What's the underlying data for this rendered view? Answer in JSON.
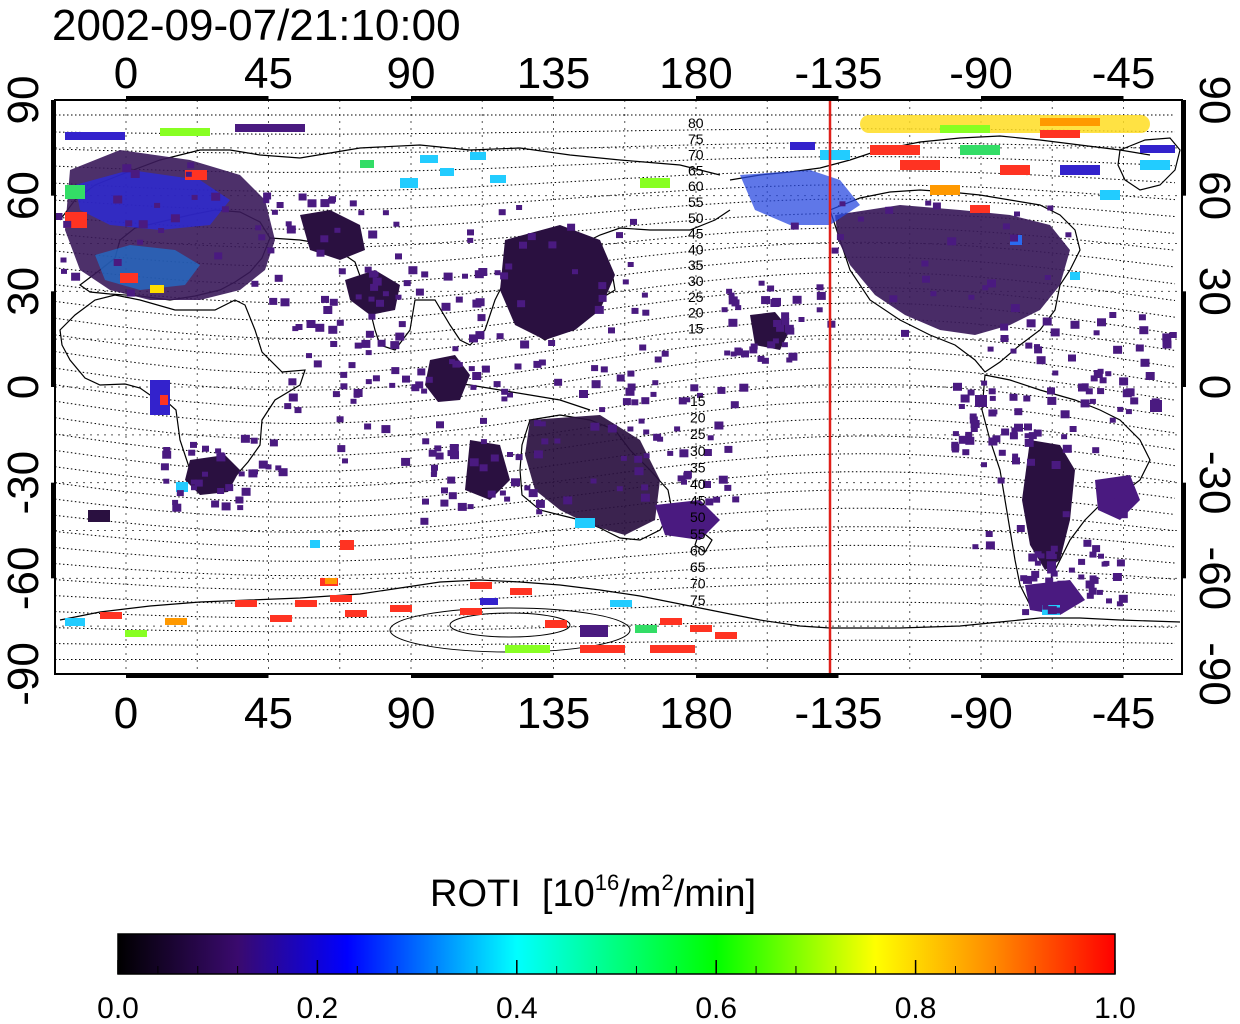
{
  "title": "2002-09-07/21:10:00",
  "axes": {
    "top_ticks": [
      "0",
      "45",
      "90",
      "135",
      "180",
      "-135",
      "-90",
      "-45"
    ],
    "bottom_ticks": [
      "0",
      "45",
      "90",
      "135",
      "180",
      "-135",
      "-90",
      "-45"
    ],
    "left_ticks": [
      "90",
      "60",
      "30",
      "0",
      "-30",
      "-60",
      "-90"
    ],
    "right_ticks": [
      "90",
      "60",
      "30",
      "0",
      "-30",
      "-60",
      "-90"
    ]
  },
  "contour_labels_north": [
    "80",
    "75",
    "70",
    "65",
    "60",
    "55",
    "50",
    "45",
    "40",
    "35",
    "30",
    "25",
    "20",
    "15"
  ],
  "contour_labels_south": [
    "15",
    "20",
    "25",
    "30",
    "35",
    "40",
    "45",
    "50",
    "55",
    "60",
    "65",
    "70",
    "75"
  ],
  "colorbar": {
    "label": "ROTI",
    "units_open": "[10",
    "units_exp1": "16",
    "units_mid": "/m",
    "units_exp2": "2",
    "units_close": "/min]",
    "ticks": [
      "0.0",
      "0.2",
      "0.4",
      "0.6",
      "0.8",
      "1.0"
    ],
    "range": [
      0.0,
      1.0
    ],
    "colors": [
      "#000000",
      "#3a0a6e",
      "#0000ff",
      "#00ffff",
      "#00ff00",
      "#ffff00",
      "#ff0000"
    ]
  },
  "terminator_line": {
    "longitude": -137,
    "color": "#e0201a"
  },
  "colors": {
    "frame": "#000000",
    "grid": "#555555",
    "coast": "#000000"
  }
}
